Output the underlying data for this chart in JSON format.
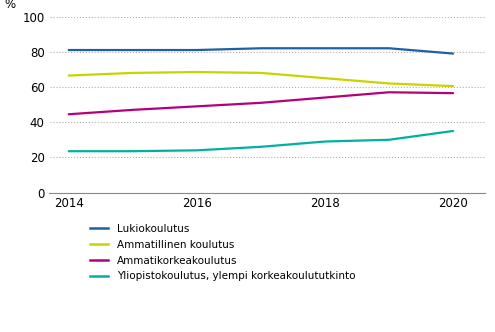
{
  "years": [
    2014,
    2015,
    2016,
    2017,
    2018,
    2019,
    2020
  ],
  "series": [
    {
      "label": "Lukiokoulutus",
      "color": "#1f5fa6",
      "values": [
        81,
        81,
        81,
        82,
        82,
        82,
        79
      ]
    },
    {
      "label": "Ammatillinen koulutus",
      "color": "#c8d400",
      "values": [
        66.5,
        68,
        68.5,
        68,
        65,
        62,
        60.5
      ]
    },
    {
      "label": "Ammatikorkeakoulutus",
      "color": "#b5007c",
      "values": [
        44.5,
        47,
        49,
        51,
        54,
        57,
        56.5
      ]
    },
    {
      "label": "Yliopistokoulutus, ylempi korkeakoulututkinto",
      "color": "#00b0a0",
      "values": [
        23.5,
        23.5,
        24,
        26,
        29,
        30,
        35
      ]
    }
  ],
  "ylabel": "%",
  "ylim": [
    0,
    100
  ],
  "yticks": [
    0,
    20,
    40,
    60,
    80,
    100
  ],
  "xlim": [
    2013.7,
    2020.5
  ],
  "xticks": [
    2014,
    2016,
    2018,
    2020
  ],
  "background_color": "#ffffff",
  "grid_color": "#b0b0b0",
  "linewidth": 1.6
}
